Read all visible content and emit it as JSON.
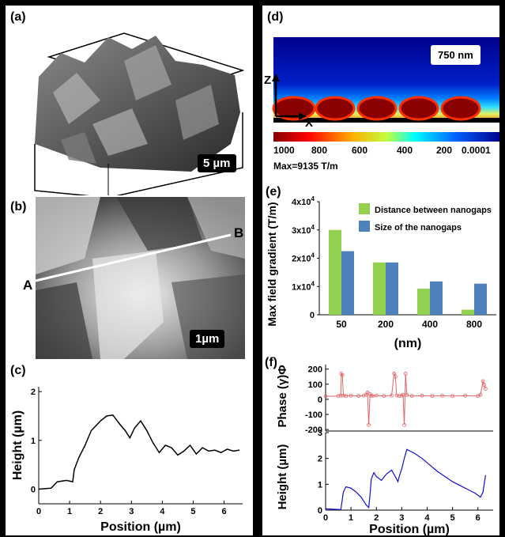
{
  "panels": {
    "a": {
      "label": "(a)",
      "scale": "5 µm"
    },
    "b": {
      "label": "(b)",
      "scale": "1µm",
      "point_a": "A",
      "point_b": "B"
    },
    "c": {
      "label": "(c)"
    },
    "d": {
      "label": "(d)",
      "scale": "750 nm",
      "axis_z": "Z",
      "axis_x": "X",
      "colorbar_ticks": [
        "1000",
        "800",
        "600",
        "400",
        "200",
        "0.0001"
      ],
      "max_text": "Max=9135 T/m"
    },
    "e": {
      "label": "(e)"
    },
    "f": {
      "label": "(f)"
    }
  },
  "chart_data": [
    {
      "id": "c",
      "type": "line",
      "xlabel": "Position (µm)",
      "ylabel": "Height (µm)",
      "xlim": [
        0,
        6.6
      ],
      "ylim": [
        -0.3,
        2.1
      ],
      "x_ticks": [
        "0",
        "1",
        "2",
        "3",
        "4",
        "5",
        "6"
      ],
      "y_ticks": [
        "0",
        "1",
        "2"
      ],
      "series": [
        {
          "color": "#000000",
          "x": [
            0,
            0.4,
            0.6,
            0.9,
            1.1,
            1.15,
            1.3,
            1.5,
            1.6,
            1.7,
            1.85,
            2.0,
            2.2,
            2.4,
            2.6,
            2.8,
            2.95,
            3.1,
            3.3,
            3.5,
            3.7,
            3.9,
            4.1,
            4.3,
            4.5,
            4.7,
            4.9,
            5.1,
            5.3,
            5.5,
            5.7,
            5.9,
            6.1,
            6.3,
            6.5
          ],
          "y": [
            0,
            0.02,
            0.15,
            0.18,
            0.15,
            0.4,
            0.65,
            0.9,
            1.05,
            1.2,
            1.3,
            1.4,
            1.5,
            1.52,
            1.35,
            1.2,
            1.05,
            1.25,
            1.4,
            1.2,
            0.95,
            0.75,
            0.9,
            0.85,
            0.7,
            0.78,
            0.9,
            0.72,
            0.85,
            0.78,
            0.8,
            0.75,
            0.82,
            0.78,
            0.8
          ]
        }
      ]
    },
    {
      "id": "e",
      "type": "bar",
      "ylabel": "Max field gradient (T/m)",
      "xlabel": "(nm)",
      "categories": [
        "50",
        "200",
        "400",
        "800"
      ],
      "ylim": [
        0,
        40000
      ],
      "y_ticks": [
        {
          "value": 0,
          "label": "0"
        },
        {
          "value": 10000,
          "label": "1x10",
          "sup": "4"
        },
        {
          "value": 20000,
          "label": "2x10",
          "sup": "4"
        },
        {
          "value": 30000,
          "label": "3x10",
          "sup": "4"
        },
        {
          "value": 40000,
          "label": "4x10",
          "sup": "4"
        }
      ],
      "series": [
        {
          "name": "Distance between nanogaps",
          "color": "#92d050",
          "values": [
            30000,
            18500,
            9200,
            1800
          ]
        },
        {
          "name": "Size of the nanogaps",
          "color": "#4f81bd",
          "values": [
            22500,
            18500,
            11800,
            11000
          ]
        }
      ]
    },
    {
      "id": "f_top",
      "type": "line",
      "ylabel": "Phase (γ)Φ",
      "xlim": [
        0,
        6.6
      ],
      "ylim": [
        -210,
        230
      ],
      "y_ticks": [
        "200",
        "100",
        "0",
        "-100",
        "-200"
      ],
      "series": [
        {
          "color": "#e06666",
          "x": [
            0,
            0.5,
            0.6,
            0.62,
            0.66,
            0.7,
            0.8,
            1.0,
            1.3,
            1.5,
            1.6,
            1.65,
            1.7,
            1.75,
            1.8,
            1.85,
            2.0,
            2.3,
            2.6,
            2.7,
            2.75,
            2.8,
            2.9,
            3.0,
            3.05,
            3.1,
            3.15,
            3.2,
            3.4,
            3.8,
            4.2,
            4.6,
            5.0,
            5.5,
            6.0,
            6.1,
            6.2,
            6.25,
            6.3
          ],
          "y": [
            20,
            22,
            25,
            170,
            160,
            25,
            22,
            24,
            22,
            25,
            30,
            45,
            -170,
            35,
            25,
            22,
            25,
            22,
            25,
            170,
            150,
            25,
            22,
            25,
            30,
            -170,
            170,
            28,
            22,
            24,
            22,
            24,
            22,
            24,
            22,
            30,
            120,
            95,
            70
          ]
        }
      ]
    },
    {
      "id": "f_bottom",
      "type": "line",
      "ylabel": "Height (µm)",
      "xlabel": "Position (µm)",
      "xlim": [
        0,
        6.6
      ],
      "ylim": [
        0,
        3
      ],
      "x_ticks": [
        "0",
        "1",
        "2",
        "3",
        "4",
        "5",
        "6"
      ],
      "y_ticks": [
        "0",
        "1",
        "2",
        "3"
      ],
      "series": [
        {
          "color": "#1010cc",
          "x": [
            0,
            0.6,
            0.7,
            0.8,
            1.0,
            1.2,
            1.4,
            1.6,
            1.7,
            1.75,
            1.8,
            1.9,
            2.0,
            2.2,
            2.4,
            2.6,
            2.8,
            2.85,
            2.9,
            3.0,
            3.1,
            3.2,
            3.5,
            3.8,
            4.1,
            4.4,
            4.7,
            5.0,
            5.3,
            5.6,
            5.9,
            6.1,
            6.2,
            6.3
          ],
          "y": [
            0.05,
            0.02,
            0.7,
            0.9,
            0.85,
            0.7,
            0.5,
            0.2,
            0.1,
            0.6,
            1.2,
            1.45,
            1.3,
            1.15,
            1.4,
            1.55,
            1.2,
            1.1,
            1.3,
            1.6,
            2.0,
            2.35,
            2.2,
            2.0,
            1.75,
            1.5,
            1.3,
            1.1,
            0.95,
            0.8,
            0.65,
            0.5,
            0.7,
            1.35
          ]
        }
      ]
    }
  ]
}
